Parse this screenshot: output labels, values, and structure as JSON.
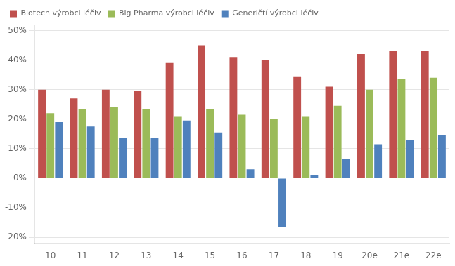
{
  "chart_data": {
    "type": "bar",
    "categories": [
      "10",
      "11",
      "12",
      "13",
      "14",
      "15",
      "16",
      "17",
      "18",
      "19",
      "20e",
      "21e",
      "22e"
    ],
    "series": [
      {
        "name": "Biotech výrobci léčiv",
        "color": "#C0504D",
        "values": [
          0.3,
          0.27,
          0.3,
          0.295,
          0.39,
          0.45,
          0.41,
          0.4,
          0.345,
          0.31,
          0.42,
          0.43,
          0.43
        ]
      },
      {
        "name": "Big Pharma výrobci léčiv",
        "color": "#9BBB59",
        "values": [
          0.22,
          0.235,
          0.24,
          0.235,
          0.21,
          0.235,
          0.215,
          0.2,
          0.21,
          0.245,
          0.3,
          0.335,
          0.34
        ]
      },
      {
        "name": "Generičtí výrobci léčiv",
        "color": "#4F81BD",
        "values": [
          0.19,
          0.175,
          0.135,
          0.135,
          0.195,
          0.155,
          0.03,
          -0.165,
          0.01,
          0.065,
          0.115,
          0.13,
          0.145
        ]
      }
    ],
    "ylim": [
      -0.22,
      0.52
    ],
    "yticks": [
      {
        "value": -0.2,
        "label": "-20%"
      },
      {
        "value": -0.1,
        "label": "-10%"
      },
      {
        "value": 0.0,
        "label": "0%"
      },
      {
        "value": 0.1,
        "label": "10%"
      },
      {
        "value": 0.2,
        "label": "20%"
      },
      {
        "value": 0.3,
        "label": "30%"
      },
      {
        "value": 0.4,
        "label": "40%"
      },
      {
        "value": 0.5,
        "label": "50%"
      }
    ],
    "grid": true,
    "legend": "upper left"
  }
}
